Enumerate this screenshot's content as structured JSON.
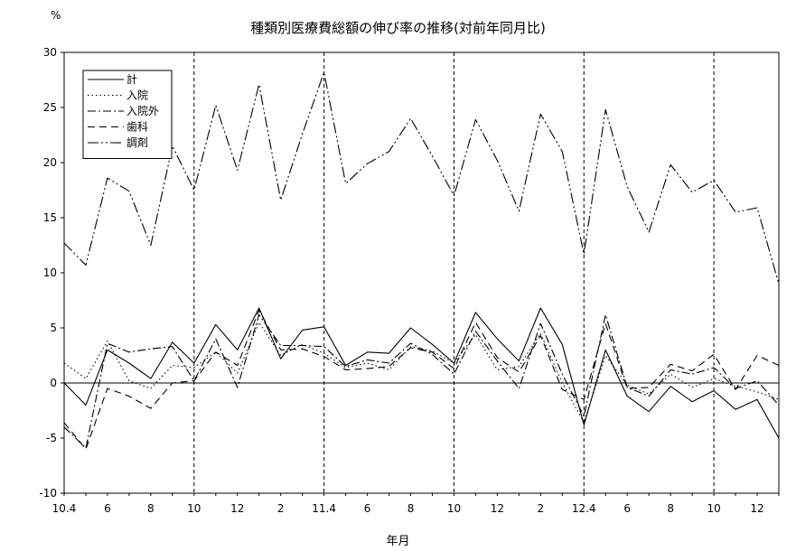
{
  "chart_data": {
    "type": "line",
    "title": "種類別医療費総額の伸び率の推移(対前年同月比)",
    "ylabel": "%",
    "xlabel": "年月",
    "ylim": [
      -10,
      30
    ],
    "yticks": [
      -10,
      -5,
      0,
      5,
      10,
      15,
      20,
      25,
      30
    ],
    "categories": [
      "10.4",
      "10.5",
      "10.6",
      "10.7",
      "10.8",
      "10.9",
      "10.10",
      "10.11",
      "10.12",
      "11.1",
      "11.2",
      "11.3",
      "11.4",
      "11.5",
      "11.6",
      "11.7",
      "11.8",
      "11.9",
      "11.10",
      "11.11",
      "11.12",
      "12.1",
      "12.2",
      "12.3",
      "12.4",
      "12.5",
      "12.6",
      "12.7",
      "12.8",
      "12.9",
      "12.10",
      "12.11",
      "12.12",
      "13.1"
    ],
    "xtick_labels": [
      {
        "index": 0,
        "label": "10.4"
      },
      {
        "index": 2,
        "label": "6"
      },
      {
        "index": 4,
        "label": "8"
      },
      {
        "index": 6,
        "label": "10"
      },
      {
        "index": 8,
        "label": "12"
      },
      {
        "index": 10,
        "label": "2"
      },
      {
        "index": 12,
        "label": "11.4"
      },
      {
        "index": 14,
        "label": "6"
      },
      {
        "index": 16,
        "label": "8"
      },
      {
        "index": 18,
        "label": "10"
      },
      {
        "index": 20,
        "label": "12"
      },
      {
        "index": 22,
        "label": "2"
      },
      {
        "index": 24,
        "label": "12.4"
      },
      {
        "index": 26,
        "label": "6"
      },
      {
        "index": 28,
        "label": "8"
      },
      {
        "index": 30,
        "label": "10"
      },
      {
        "index": 32,
        "label": "12"
      }
    ],
    "vlines": [
      6,
      12,
      18,
      24,
      30
    ],
    "legend": "top-left",
    "series": [
      {
        "name": "計",
        "dash": "",
        "values": [
          0,
          -2,
          3,
          1.8,
          0.4,
          3.7,
          1.8,
          5.3,
          3,
          6.8,
          2.2,
          4.8,
          5.1,
          1.6,
          2.8,
          2.7,
          5,
          3.5,
          1.8,
          6.4,
          4,
          2,
          6.8,
          3.5,
          -3.8,
          3,
          -1.2,
          -2.6,
          -0.3,
          -1.7,
          -0.7,
          -2.4,
          -1.5,
          -5
        ]
      },
      {
        "name": "入院",
        "dash": "1.5,3",
        "values": [
          1.8,
          0.4,
          3.8,
          0.2,
          -0.5,
          1.6,
          1.4,
          2.8,
          0.9,
          5.5,
          2.5,
          3.5,
          2.7,
          1.4,
          1.8,
          1.2,
          3.3,
          2.9,
          1.8,
          4.4,
          1.2,
          1.5,
          4.5,
          0,
          -3.6,
          2.5,
          -0.2,
          -1,
          0.8,
          -0.4,
          0.4,
          -0.3,
          -0.8,
          -1.5
        ]
      },
      {
        "name": "入院外",
        "dash": "9,3,2,3",
        "values": [
          -4,
          -5.9,
          3.6,
          2.8,
          3.1,
          3.3,
          0.2,
          4,
          -0.4,
          6.2,
          3.4,
          3.4,
          3.3,
          1.5,
          2.1,
          1.8,
          3.6,
          2.6,
          0.8,
          4.7,
          2,
          -0.5,
          5.4,
          0.8,
          -3,
          6.2,
          -0.4,
          -1.2,
          1.2,
          0.8,
          1.4,
          -0.5,
          0.2,
          -2
        ]
      },
      {
        "name": "歯科",
        "dash": "8,5",
        "values": [
          -3.6,
          -6,
          -0.5,
          -1.2,
          -2.3,
          0,
          0.2,
          2.8,
          1.6,
          6.6,
          3,
          3.1,
          2.4,
          1.2,
          1.3,
          1.5,
          3.2,
          2.8,
          1.3,
          5.5,
          2.3,
          1,
          4.3,
          -0.6,
          -1.5,
          5.4,
          -0.5,
          -0.4,
          1.7,
          1.1,
          2.6,
          -0.6,
          2.5,
          1.6
        ]
      },
      {
        "name": "調剤",
        "dash": "12,3,2,3,2,3",
        "values": [
          12.7,
          10.7,
          18.6,
          17.4,
          12.5,
          21.5,
          17.5,
          25.2,
          19.3,
          27.1,
          16.6,
          22.6,
          28.2,
          18.1,
          19.9,
          21,
          24,
          20.6,
          17,
          23.9,
          20.2,
          15.6,
          24.4,
          21,
          11.7,
          24.8,
          17.8,
          13.7,
          19.8,
          17.3,
          18.4,
          15.5,
          15.9,
          9
        ]
      }
    ]
  }
}
